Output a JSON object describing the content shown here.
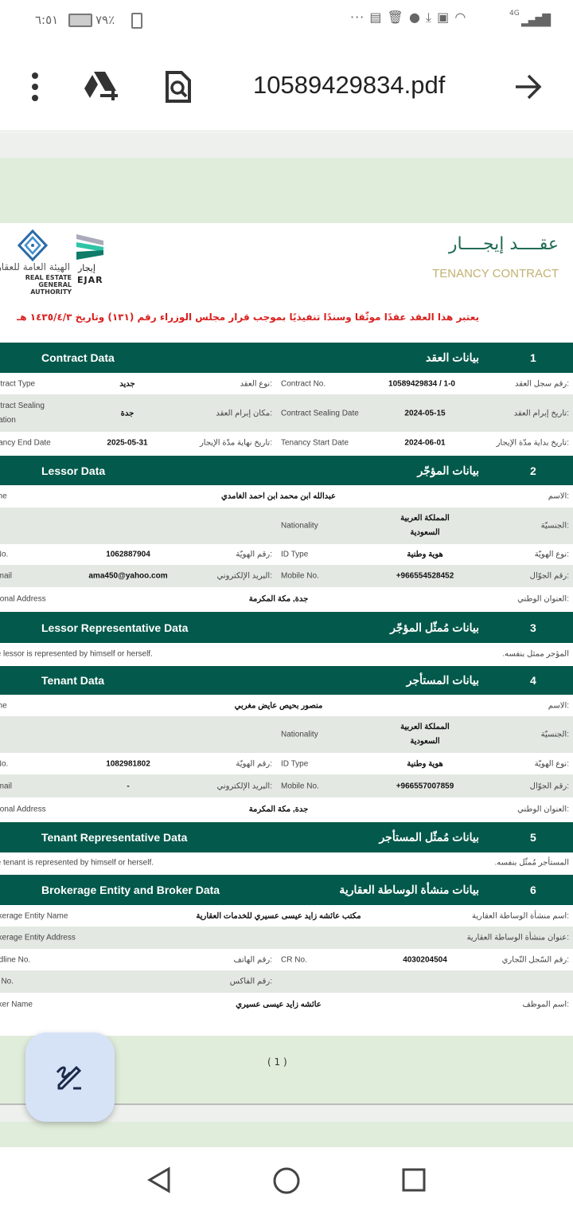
{
  "status_bar": {
    "time": "٦:٥١",
    "battery": "٧٩٪",
    "network": "4G"
  },
  "toolbar": {
    "filename": "10589429834.pdf"
  },
  "doc": {
    "title_ar": "عقــــد إيجــــار",
    "title_en": "TENANCY CONTRACT",
    "logo_ejar_ar": "إيجار",
    "logo_ejar_en": "EJAR",
    "logo_authority_ar": "الهيئة العامة للعقار",
    "logo_authority_en": "REAL ESTATE GENERAL AUTHORITY",
    "notice": "يعتبر هذا العقد عقدًا موثّقا وسندًا تنفيذيًا بموجب قرار مجلس الوزراء رقم (١٣١) وتاريخ ١٤٣٥/٤/٣ هـ",
    "page_number": "( 1 )"
  },
  "sections": [
    {
      "num": "1",
      "ar": "بيانات العقد",
      "en": "Contract Data"
    },
    {
      "num": "2",
      "ar": "بيانات المؤجّر",
      "en": "Lessor Data"
    },
    {
      "num": "3",
      "ar": "بيانات مُمثّل المؤجّر",
      "en": "Lessor Representative Data"
    },
    {
      "num": "4",
      "ar": "بيانات المستأجر",
      "en": "Tenant Data"
    },
    {
      "num": "5",
      "ar": "بيانات مُمثّل المستأجر",
      "en": "Tenant Representative Data"
    },
    {
      "num": "6",
      "ar": "بيانات منشأة الوساطة العقارية",
      "en": "Brokerage Entity and Broker Data"
    }
  ],
  "contract": {
    "r1": {
      "ar1": "رقم سجل العقد:",
      "v1": "10589429834 / 1-0",
      "en1": "Contract No.",
      "ar2": "نوع العقد:",
      "v2": "جديد",
      "en2": "Contract Type"
    },
    "r2": {
      "ar1": "تاريخ إبرام العقد:",
      "v1": "2024-05-15",
      "en1": "Contract Sealing Date",
      "ar2": "مكان إبرام العقد:",
      "v2": "جدة",
      "en2": "Contract Sealing Location"
    },
    "r3": {
      "ar1": "تاريخ بداية مدّة الإيجار:",
      "v1": "2024-06-01",
      "en1": "Tenancy Start Date",
      "ar2": "تاريخ نهاية مدّة الإيجار:",
      "v2": "2025-05-31",
      "en2": "Tenancy End Date"
    }
  },
  "lessor": {
    "name_ar": "الاسم:",
    "name": "عبدالله ابن محمد ابن احمد الغامدي",
    "name_en": "Name",
    "nat_ar": "الجنسيّة:",
    "nat": "المملكة العربية السعودية",
    "nat_en": "Nationality",
    "idtype_ar": "نوع الهويّة:",
    "idtype": "هوية وطنية",
    "idtype_en": "ID Type",
    "idno_ar": "رقم الهويّة:",
    "idno": "1062887904",
    "idno_en": "ID No.",
    "mobile_ar": "رقم الجوّال:",
    "mobile": "+966554528452",
    "mobile_en": "Mobile No.",
    "email_ar": "البريد الإلكتروني:",
    "email": "ama450@yahoo.com",
    "email_en": "Email",
    "addr_ar": "العنوان الوطني:",
    "addr": "جدة, مكة المكرمة",
    "addr_en": "National Address"
  },
  "lessor_rep": {
    "ar": "المؤجر ممثل بنفسه.",
    "en": "The lessor is represented by himself or herself."
  },
  "tenant": {
    "name_ar": "الاسم:",
    "name": "منصور بحيص عايض مغربي",
    "name_en": "Name",
    "nat_ar": "الجنسيّة:",
    "nat": "المملكة العربية السعودية",
    "nat_en": "Nationality",
    "idtype_ar": "نوع الهويّة:",
    "idtype": "هوية وطنية",
    "idtype_en": "ID Type",
    "idno_ar": "رقم الهويّة:",
    "idno": "1082981802",
    "idno_en": "ID No.",
    "mobile_ar": "رقم الجوّال:",
    "mobile": "+966557007859",
    "mobile_en": "Mobile No.",
    "email_ar": "البريد الإلكتروني:",
    "email": "-",
    "email_en": "Email",
    "addr_ar": "العنوان الوطني:",
    "addr": "جدة, مكة المكرمة",
    "addr_en": "National Address"
  },
  "tenant_rep": {
    "ar": "المستأجر مُمثّل بنفسه.",
    "en": "The tenant is represented by himself or herself."
  },
  "broker": {
    "entity_ar": "اسم منشأة الوساطة العقارية:",
    "entity": "مكتب عائشه زايد عيسى عسيري للخدمات العقارية",
    "entity_en": "Brokerage Entity Name",
    "address_ar": "عنوان منشأة الوساطة العقارية:",
    "address_en": "Brokerage Entity Address",
    "cr_ar": "رقم السّجل التّجاري:",
    "cr": "4030204504",
    "cr_en": "CR No.",
    "phone_ar": "رقم الهاتف:",
    "phone_en": "Landline No.",
    "fax_ar": "رقم الفاكس:",
    "fax_en": "Fax No.",
    "staff_ar": "اسم الموظف:",
    "staff": "عائشه زايد عيسى عسيري",
    "staff_en": "Broker Name"
  }
}
